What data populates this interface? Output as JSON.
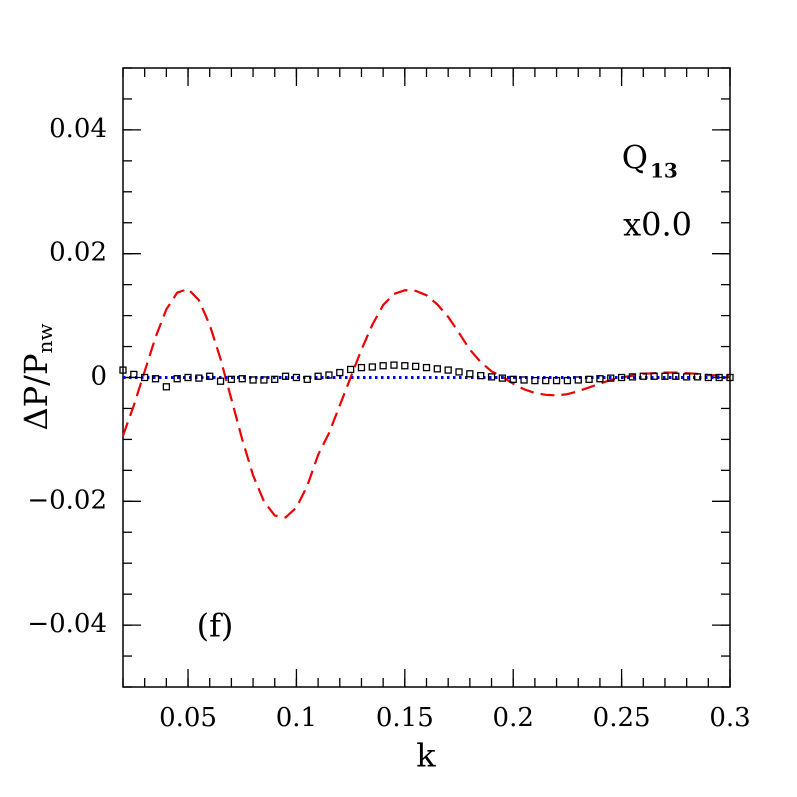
{
  "chart_data": {
    "type": "line",
    "xlabel": "k",
    "ylabel": "ΔP/P",
    "ylabel_sub": "nw",
    "annotations": [
      {
        "text": "Q",
        "sub": "13"
      },
      {
        "text": "x0.0"
      },
      {
        "text": "(f)"
      }
    ],
    "xlim": [
      0.02,
      0.3
    ],
    "ylim": [
      -0.05,
      0.05
    ],
    "xticks": [
      0.05,
      0.1,
      0.15,
      0.2,
      0.25,
      0.3
    ],
    "yticks": [
      {
        "value": -0.04,
        "label": "−0.04"
      },
      {
        "value": -0.02,
        "label": "−0.02"
      },
      0,
      0.02,
      0.04
    ],
    "xminorticks": [
      0.02,
      0.03,
      0.04,
      0.05,
      0.06,
      0.07,
      0.08,
      0.09,
      0.1,
      0.11,
      0.12,
      0.13,
      0.14,
      0.15,
      0.16,
      0.17,
      0.18,
      0.19,
      0.2,
      0.21,
      0.22,
      0.23,
      0.24,
      0.25,
      0.26,
      0.27,
      0.28,
      0.29,
      0.3
    ],
    "yminorticks": [
      -0.05,
      -0.045,
      -0.04,
      -0.035,
      -0.03,
      -0.025,
      -0.02,
      -0.015,
      -0.01,
      -0.005,
      0,
      0.005,
      0.01,
      0.015,
      0.02,
      0.025,
      0.03,
      0.035,
      0.04,
      0.045,
      0.05
    ],
    "x": [
      0.02,
      0.025,
      0.03,
      0.035,
      0.04,
      0.045,
      0.05,
      0.055,
      0.06,
      0.065,
      0.07,
      0.075,
      0.08,
      0.085,
      0.09,
      0.095,
      0.1,
      0.105,
      0.11,
      0.115,
      0.12,
      0.125,
      0.13,
      0.135,
      0.14,
      0.145,
      0.15,
      0.155,
      0.16,
      0.165,
      0.17,
      0.175,
      0.18,
      0.185,
      0.19,
      0.195,
      0.2,
      0.205,
      0.21,
      0.215,
      0.22,
      0.225,
      0.23,
      0.235,
      0.24,
      0.245,
      0.25,
      0.255,
      0.26,
      0.265,
      0.27,
      0.275,
      0.28,
      0.285,
      0.29,
      0.295,
      0.3
    ],
    "series": [
      {
        "color": "#ee0000",
        "style": "dashed",
        "values": [
          -0.0094,
          -0.0045,
          0.001,
          0.0065,
          0.011,
          0.0137,
          0.0143,
          0.0125,
          0.0085,
          0.003,
          -0.0035,
          -0.01,
          -0.0158,
          -0.02,
          -0.0223,
          -0.0226,
          -0.021,
          -0.0175,
          -0.0125,
          -0.009,
          -0.0045,
          0,
          0.0045,
          0.0085,
          0.0117,
          0.0135,
          0.0141,
          0.014,
          0.0133,
          0.0118,
          0.0098,
          0.0072,
          0.0045,
          0.0025,
          0.001,
          0.0001,
          -0.001,
          -0.0019,
          -0.0025,
          -0.0028,
          -0.0029,
          -0.0027,
          -0.0022,
          -0.0016,
          -0.001,
          -0.0004,
          0,
          0.0003,
          0.0006,
          0.0007,
          0.0008,
          0.0008,
          0.0007,
          0.0006,
          0.0004,
          0.0003,
          0.0002
        ]
      },
      {
        "color": "#0000ee",
        "style": "dotted",
        "values": [
          0,
          0,
          0,
          0,
          0,
          0,
          0,
          0,
          0,
          0,
          0,
          0,
          0,
          0,
          0,
          0,
          0,
          0,
          0,
          0,
          0,
          0,
          0,
          0,
          0,
          0,
          0,
          0,
          0,
          0,
          0,
          0,
          0,
          0,
          0,
          0,
          0,
          0,
          0,
          0,
          0,
          0,
          0,
          0,
          0,
          0,
          0,
          0,
          0,
          0,
          0,
          0,
          0,
          0,
          0,
          0,
          0
        ]
      },
      {
        "color": "#000000",
        "style": "markers",
        "values": [
          0.0012,
          0.0005,
          0,
          -0.0002,
          -0.0015,
          -0.0002,
          0,
          -0.0001,
          0.0002,
          -0.0006,
          -0.0003,
          -0.0002,
          -0.0004,
          -0.0004,
          -0.0003,
          0.0002,
          0,
          -0.0003,
          0.0002,
          0.0004,
          0.0008,
          0.0013,
          0.0016,
          0.0017,
          0.0019,
          0.002,
          0.0019,
          0.0018,
          0.0016,
          0.0014,
          0.0012,
          0.0009,
          0.0006,
          0.0003,
          0.0001,
          -0.0001,
          -0.0003,
          -0.0004,
          -0.0005,
          -0.0005,
          -0.0005,
          -0.0005,
          -0.0004,
          -0.0003,
          -0.0002,
          -0.0001,
          0,
          0.0001,
          0.0002,
          0.0002,
          0.0002,
          0.0002,
          0.0001,
          0.0001,
          0,
          0,
          0
        ]
      }
    ]
  }
}
